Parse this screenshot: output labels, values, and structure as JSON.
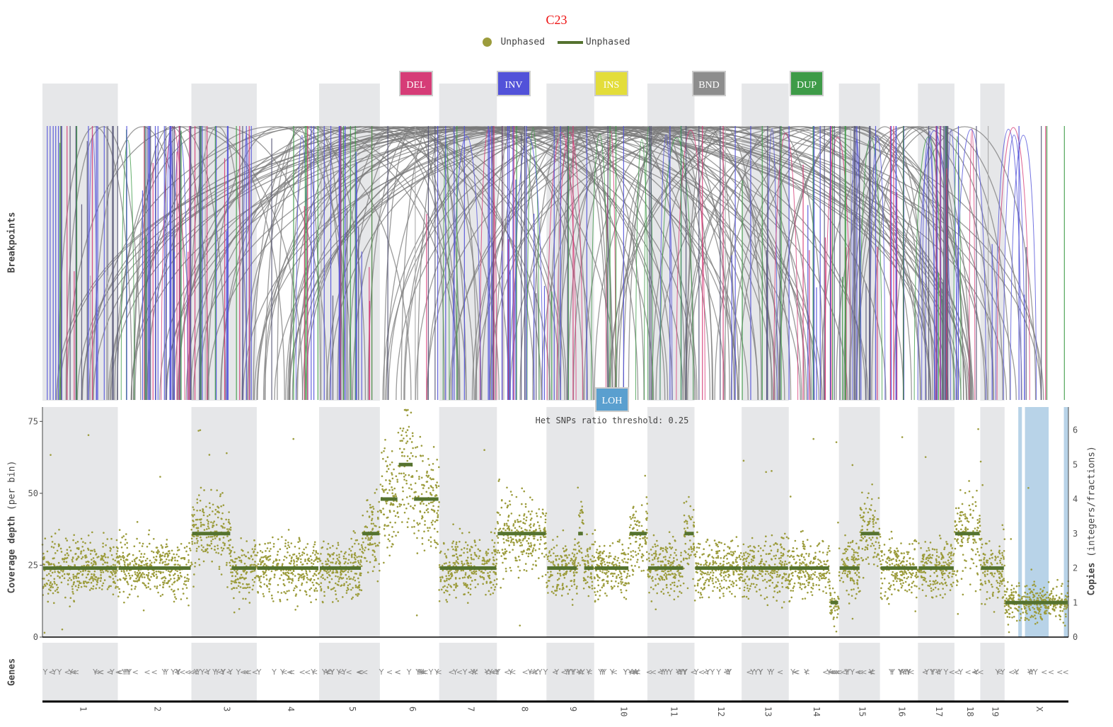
{
  "title": "C23",
  "colors": {
    "title": "#ee1111",
    "snp_points": "#9c9c3c",
    "segments": "#55722f",
    "chrom_band": "#e6e7e9",
    "loh_band": "#b8d3e8",
    "gene_marker": "#888888",
    "axis": "#000000"
  },
  "legend": [
    {
      "label": "Unphased",
      "marker": "dot",
      "color": "#9c9c3c"
    },
    {
      "label": "Unphased",
      "marker": "line",
      "color": "#55722f"
    }
  ],
  "sv_buttons": [
    {
      "label": "DEL",
      "color": "#d63c77"
    },
    {
      "label": "INV",
      "color": "#5252d9"
    },
    {
      "label": "INS",
      "color": "#e3dd3a"
    },
    {
      "label": "BND",
      "color": "#8d8d8d"
    },
    {
      "label": "DUP",
      "color": "#3e9b48"
    }
  ],
  "loh_button": {
    "label": "LOH",
    "color": "#5a9fcf"
  },
  "panel_labels": {
    "breakpoints": "Breakpoints",
    "coverage_bold": "Coverage depth",
    "coverage_unit": "(per bin)",
    "copies_bold": "Copies",
    "copies_unit": "(integers/fractions)",
    "genes": "Genes"
  },
  "annotation": "Het SNPs ratio threshold: 0.25",
  "chart_data": {
    "type": "scatter",
    "title": "C23",
    "subtitle": "",
    "xlabel": "",
    "ylabel": "Coverage depth (per bin)",
    "ylabel_right": "Copies (integers/fractions)",
    "ylim": [
      0,
      80
    ],
    "y_ticks": [
      0,
      25,
      50,
      75
    ],
    "y2_ticks": [
      0,
      1,
      2,
      3,
      4,
      5,
      6
    ],
    "grid": false,
    "legend_position": "top-center",
    "chromosomes": [
      "1",
      "2",
      "3",
      "4",
      "5",
      "6",
      "7",
      "8",
      "9",
      "10",
      "11",
      "12",
      "13",
      "14",
      "15",
      "16",
      "17",
      "18",
      "19",
      "X"
    ],
    "chromosome_spans": [
      {
        "chrom": "1",
        "start": 0,
        "end": 248
      },
      {
        "chrom": "2",
        "start": 248,
        "end": 490
      },
      {
        "chrom": "3",
        "start": 490,
        "end": 705
      },
      {
        "chrom": "4",
        "start": 705,
        "end": 910
      },
      {
        "chrom": "5",
        "start": 910,
        "end": 1110
      },
      {
        "chrom": "6",
        "start": 1110,
        "end": 1305
      },
      {
        "chrom": "7",
        "start": 1305,
        "end": 1495
      },
      {
        "chrom": "8",
        "start": 1495,
        "end": 1658
      },
      {
        "chrom": "9",
        "start": 1658,
        "end": 1815
      },
      {
        "chrom": "10",
        "start": 1815,
        "end": 1990
      },
      {
        "chrom": "11",
        "start": 1990,
        "end": 2145
      },
      {
        "chrom": "12",
        "start": 2145,
        "end": 2300
      },
      {
        "chrom": "13",
        "start": 2300,
        "end": 2455
      },
      {
        "chrom": "14",
        "start": 2455,
        "end": 2620
      },
      {
        "chrom": "15",
        "start": 2620,
        "end": 2755
      },
      {
        "chrom": "16",
        "start": 2755,
        "end": 2880
      },
      {
        "chrom": "17",
        "start": 2880,
        "end": 3000
      },
      {
        "chrom": "18",
        "start": 3000,
        "end": 3085
      },
      {
        "chrom": "19",
        "start": 3085,
        "end": 3165
      },
      {
        "chrom": "X",
        "start": 3165,
        "end": 3375
      }
    ],
    "series": [
      {
        "name": "Unphased",
        "kind": "points"
      },
      {
        "name": "Unphased",
        "kind": "segments"
      }
    ],
    "copy_number_segments": [
      {
        "chrom": "1",
        "from": 0,
        "to": 248,
        "copies": 2
      },
      {
        "chrom": "2",
        "from": 248,
        "to": 490,
        "copies": 2
      },
      {
        "chrom": "3",
        "from": 490,
        "to": 620,
        "copies": 3
      },
      {
        "chrom": "3",
        "from": 620,
        "to": 705,
        "copies": 2
      },
      {
        "chrom": "4",
        "from": 705,
        "to": 910,
        "copies": 2
      },
      {
        "chrom": "5",
        "from": 910,
        "to": 1050,
        "copies": 2
      },
      {
        "chrom": "5",
        "from": 1050,
        "to": 1110,
        "copies": 3
      },
      {
        "chrom": "6",
        "from": 1110,
        "to": 1170,
        "copies": 4
      },
      {
        "chrom": "6",
        "from": 1170,
        "to": 1220,
        "copies": 5
      },
      {
        "chrom": "6",
        "from": 1220,
        "to": 1305,
        "copies": 4
      },
      {
        "chrom": "7",
        "from": 1305,
        "to": 1495,
        "copies": 2
      },
      {
        "chrom": "8",
        "from": 1495,
        "to": 1658,
        "copies": 3
      },
      {
        "chrom": "9",
        "from": 1658,
        "to": 1760,
        "copies": 2
      },
      {
        "chrom": "9",
        "from": 1760,
        "to": 1780,
        "copies": 3
      },
      {
        "chrom": "9",
        "from": 1780,
        "to": 1815,
        "copies": 2
      },
      {
        "chrom": "10",
        "from": 1815,
        "to": 1930,
        "copies": 2
      },
      {
        "chrom": "10",
        "from": 1930,
        "to": 1990,
        "copies": 3
      },
      {
        "chrom": "11",
        "from": 1990,
        "to": 2110,
        "copies": 2
      },
      {
        "chrom": "11",
        "from": 2110,
        "to": 2145,
        "copies": 3
      },
      {
        "chrom": "12",
        "from": 2145,
        "to": 2300,
        "copies": 2
      },
      {
        "chrom": "13",
        "from": 2300,
        "to": 2455,
        "copies": 2
      },
      {
        "chrom": "14",
        "from": 2455,
        "to": 2590,
        "copies": 2
      },
      {
        "chrom": "14",
        "from": 2590,
        "to": 2620,
        "copies": 1
      },
      {
        "chrom": "15",
        "from": 2620,
        "to": 2690,
        "copies": 2
      },
      {
        "chrom": "15",
        "from": 2690,
        "to": 2755,
        "copies": 3
      },
      {
        "chrom": "16",
        "from": 2755,
        "to": 2880,
        "copies": 2
      },
      {
        "chrom": "17",
        "from": 2880,
        "to": 3000,
        "copies": 2
      },
      {
        "chrom": "18",
        "from": 3000,
        "to": 3085,
        "copies": 3
      },
      {
        "chrom": "19",
        "from": 3085,
        "to": 3165,
        "copies": 2
      },
      {
        "chrom": "X",
        "from": 3165,
        "to": 3375,
        "copies": 1
      }
    ],
    "loh_regions": [
      {
        "chrom": "X",
        "from": 3210,
        "to": 3222
      },
      {
        "chrom": "X",
        "from": 3232,
        "to": 3310
      },
      {
        "chrom": "X",
        "from": 3360,
        "to": 3375
      }
    ],
    "sv_types": [
      "DEL",
      "INV",
      "INS",
      "BND",
      "DUP"
    ]
  }
}
